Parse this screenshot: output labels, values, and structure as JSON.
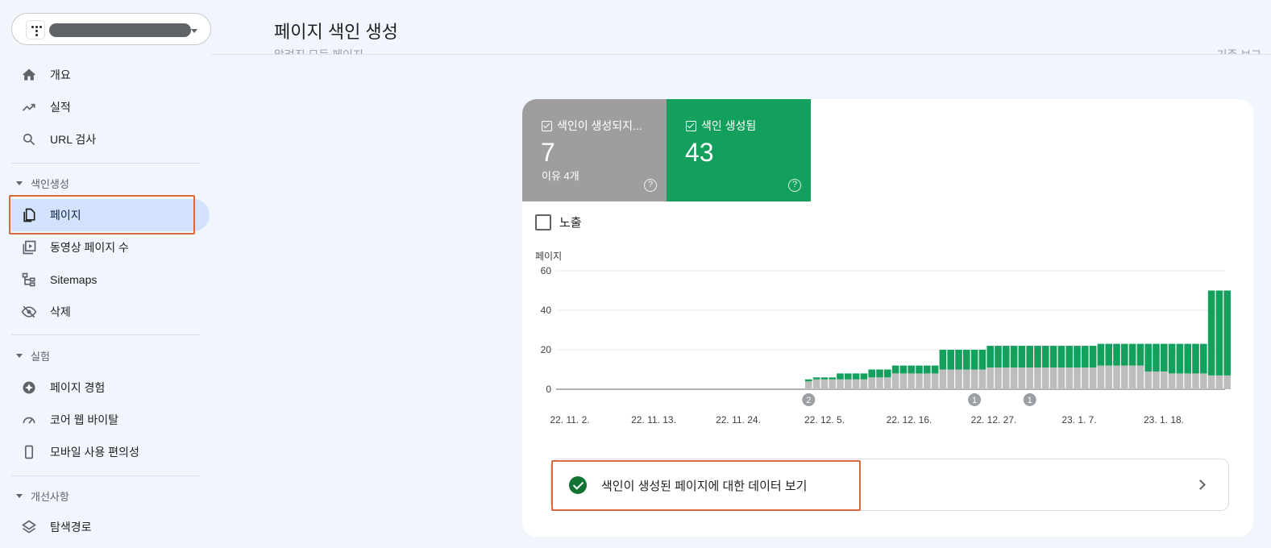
{
  "property": {
    "label": ""
  },
  "nav": {
    "items": [
      {
        "key": "overview",
        "label": "개요",
        "icon": "home-icon"
      },
      {
        "key": "performance",
        "label": "실적",
        "icon": "trending-up-icon"
      },
      {
        "key": "url-inspection",
        "label": "URL 검사",
        "icon": "search-icon"
      }
    ],
    "sections": [
      {
        "label": "색인생성",
        "items": [
          {
            "key": "pages",
            "label": "페이지",
            "icon": "pages-icon",
            "active": true
          },
          {
            "key": "video-pages",
            "label": "동영상 페이지 수",
            "icon": "video-pages-icon"
          },
          {
            "key": "sitemaps",
            "label": "Sitemaps",
            "icon": "sitemap-icon"
          },
          {
            "key": "removals",
            "label": "삭제",
            "icon": "eye-off-icon"
          }
        ]
      },
      {
        "label": "실험",
        "items": [
          {
            "key": "page-experience",
            "label": "페이지 경험",
            "icon": "experience-icon"
          },
          {
            "key": "core-web-vitals",
            "label": "코어 웹 바이탈",
            "icon": "speedometer-icon"
          },
          {
            "key": "mobile-usability",
            "label": "모바일 사용 편의성",
            "icon": "phone-icon"
          }
        ]
      },
      {
        "label": "개선사항",
        "items": [
          {
            "key": "breadcrumbs",
            "label": "탐색경로",
            "icon": "layers-icon"
          }
        ]
      }
    ]
  },
  "header": {
    "title": "페이지 색인 생성",
    "filter_label": "알려진 모든 페이지",
    "right_label": "기존 보고"
  },
  "summary": {
    "not_indexed": {
      "label": "색인이 생성되지...",
      "value": "7",
      "sub": "이유 4개",
      "color": "#9e9e9e"
    },
    "indexed": {
      "label": "색인 생성됨",
      "value": "43",
      "color": "#12a05c"
    }
  },
  "impressions_label": "노출",
  "chart_data": {
    "type": "bar",
    "stacked": true,
    "ylabel": "페이지",
    "ylim": [
      0,
      60
    ],
    "yticks": [
      "60",
      "40",
      "20",
      "0"
    ],
    "xticks": [
      "22. 11. 2.",
      "22. 11. 13.",
      "22. 11. 24.",
      "22. 12. 5.",
      "22. 12. 16.",
      "22. 12. 27.",
      "23. 1. 7.",
      "23. 1. 18."
    ],
    "grid": true,
    "series": [
      {
        "key": "not_indexed",
        "color": "#bdbdbd",
        "values": [
          0,
          0,
          0,
          0,
          0,
          0,
          0,
          0,
          0,
          0,
          0,
          0,
          0,
          0,
          0,
          0,
          0,
          0,
          0,
          0,
          0,
          0,
          0,
          0,
          0,
          0,
          0,
          0,
          0,
          0,
          0,
          0,
          0,
          4,
          5,
          5,
          5,
          5,
          5,
          5,
          5,
          6,
          6,
          6,
          8,
          8,
          8,
          8,
          8,
          8,
          10,
          10,
          10,
          10,
          10,
          10,
          11,
          11,
          11,
          11,
          11,
          11,
          11,
          11,
          11,
          11,
          11,
          11,
          11,
          11,
          12,
          12,
          12,
          12,
          12,
          12,
          9,
          9,
          9,
          8,
          8,
          8,
          8,
          8,
          7,
          7,
          7
        ]
      },
      {
        "key": "indexed",
        "color": "#12a05c",
        "values": [
          0,
          0,
          0,
          0,
          0,
          0,
          0,
          0,
          0,
          0,
          0,
          0,
          0,
          0,
          0,
          0,
          0,
          0,
          0,
          0,
          0,
          0,
          0,
          0,
          0,
          0,
          0,
          0,
          0,
          0,
          0,
          0,
          0,
          1,
          1,
          1,
          1,
          3,
          3,
          3,
          3,
          4,
          4,
          4,
          4,
          4,
          4,
          4,
          4,
          4,
          10,
          10,
          10,
          10,
          10,
          10,
          11,
          11,
          11,
          11,
          11,
          11,
          11,
          11,
          11,
          11,
          11,
          11,
          11,
          11,
          11,
          11,
          11,
          11,
          11,
          11,
          14,
          14,
          14,
          15,
          15,
          15,
          15,
          15,
          43,
          43,
          43
        ]
      }
    ],
    "annotations": [
      {
        "label": "2",
        "index": 33
      },
      {
        "label": "1",
        "index": 54
      },
      {
        "label": "1",
        "index": 61
      }
    ]
  },
  "view_data_link": "색인이 생성된 페이지에 대한 데이터 보기"
}
